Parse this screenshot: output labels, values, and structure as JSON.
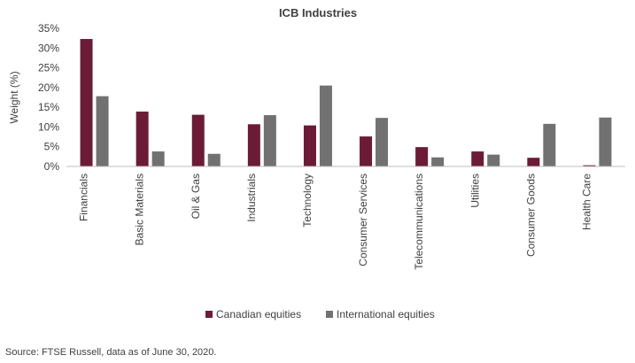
{
  "chart_data": {
    "type": "bar",
    "title": "ICB Industries",
    "xlabel": "",
    "ylabel": "Weight (%)",
    "ylim": [
      0,
      35
    ],
    "yticks": [
      "0%",
      "5%",
      "10%",
      "15%",
      "20%",
      "25%",
      "30%",
      "35%"
    ],
    "grid": false,
    "legend_position": "bottom",
    "categories": [
      "Financials",
      "Basic Materials",
      "Oil & Gas",
      "Industrials",
      "Technology",
      "Consumer Services",
      "Telecommunications",
      "Utilities",
      "Consumer Goods",
      "Health Care"
    ],
    "series": [
      {
        "name": "Canadian equities",
        "color": "#6b1b35",
        "values": [
          32.3,
          13.9,
          13.1,
          10.7,
          10.4,
          7.6,
          4.9,
          3.8,
          2.2,
          0.3
        ]
      },
      {
        "name": "International equities",
        "color": "#717171",
        "values": [
          17.8,
          3.8,
          3.2,
          13.0,
          20.5,
          12.3,
          2.3,
          3.0,
          10.8,
          12.4
        ]
      }
    ]
  },
  "footer": {
    "source": "Source: FTSE Russell, data as of June 30, 2020."
  }
}
